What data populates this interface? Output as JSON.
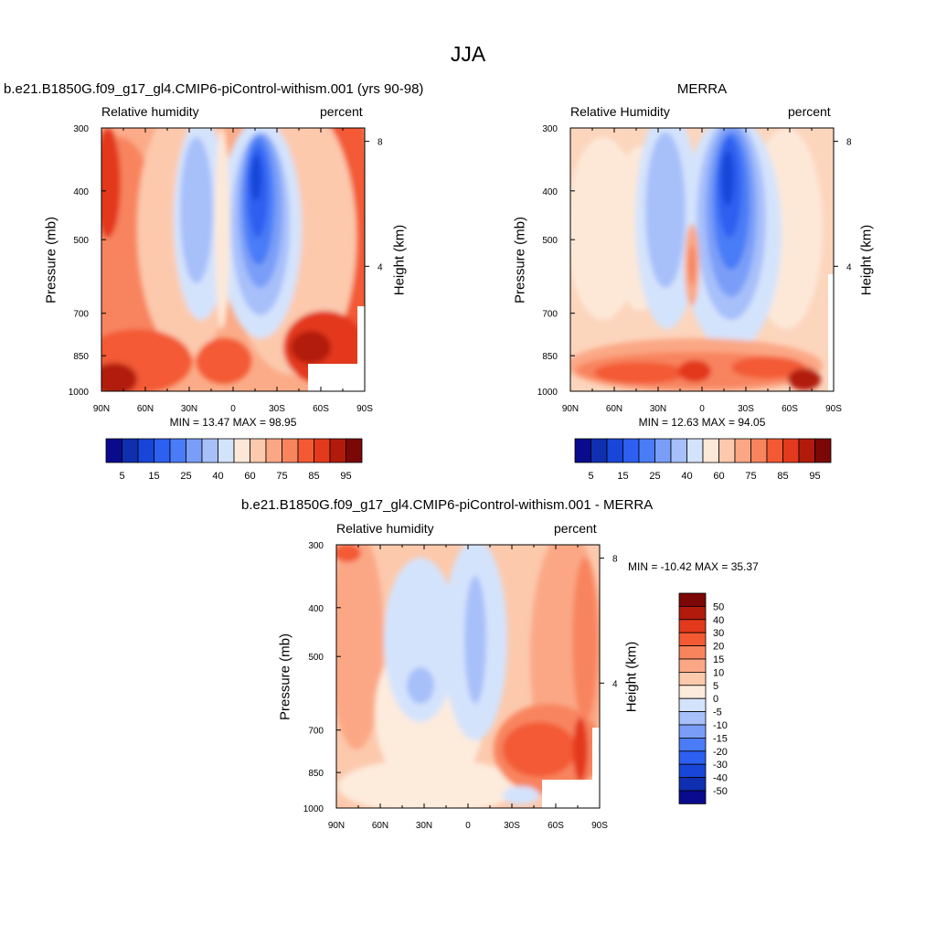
{
  "page": {
    "title": "JJA"
  },
  "palette": {
    "rh": [
      "#0a0a8c",
      "#0f2fb0",
      "#1846d8",
      "#2d5ff0",
      "#4a7cf7",
      "#7a9ef8",
      "#a7c0fa",
      "#d4e3fc",
      "#fde8d8",
      "#fcc9ad",
      "#fba785",
      "#f8845e",
      "#f35a34",
      "#e3391c",
      "#b21b0c",
      "#7c0707"
    ],
    "diff": [
      "#0a0a8c",
      "#0f2fb0",
      "#1846d8",
      "#2d5ff0",
      "#4a7cf7",
      "#7a9ef8",
      "#a7c0fa",
      "#d4e3fc",
      "#fdebdc",
      "#fcc9ad",
      "#fba785",
      "#f8845e",
      "#f35a34",
      "#e3391c",
      "#b21b0c",
      "#7c0707"
    ]
  },
  "chart_data": [
    {
      "type": "heatmap",
      "title": "b.e21.B1850G.f09_g17_gl4.CMIP6-piControl-withism.001 (yrs 90-98)",
      "left_subtitle": "Relative humidity",
      "right_subtitle": "percent",
      "ylabel": "Pressure (mb)",
      "ylabel_right": "Height (km)",
      "x_ticks": [
        "90N",
        "60N",
        "30N",
        "0",
        "30S",
        "60S",
        "90S"
      ],
      "y_ticks": [
        "300",
        "400",
        "500",
        "700",
        "850",
        "1000"
      ],
      "y_ticks_right": [
        "8",
        "4"
      ],
      "min_label": "MIN =  13.47  MAX =  98.95",
      "colorbar_labels": [
        "5",
        "15",
        "25",
        "40",
        "60",
        "75",
        "85",
        "95"
      ],
      "ylim": [
        1000,
        300
      ]
    },
    {
      "type": "heatmap",
      "title": "MERRA",
      "left_subtitle": "Relative Humidity",
      "right_subtitle": "percent",
      "ylabel": "Pressure (mb)",
      "ylabel_right": "Height (km)",
      "x_ticks": [
        "90N",
        "60N",
        "30N",
        "0",
        "30S",
        "60S",
        "90S"
      ],
      "y_ticks": [
        "300",
        "400",
        "500",
        "700",
        "850",
        "1000"
      ],
      "y_ticks_right": [
        "8",
        "4"
      ],
      "min_label": "MIN =  12.63  MAX =  94.05",
      "colorbar_labels": [
        "5",
        "15",
        "25",
        "40",
        "60",
        "75",
        "85",
        "95"
      ],
      "ylim": [
        1000,
        300
      ]
    },
    {
      "type": "heatmap",
      "title": "b.e21.B1850G.f09_g17_gl4.CMIP6-piControl-withism.001 - MERRA",
      "left_subtitle": "Relative humidity",
      "right_subtitle": "percent",
      "ylabel": "Pressure (mb)",
      "ylabel_right": "Height (km)",
      "x_ticks": [
        "90N",
        "60N",
        "30N",
        "0",
        "30S",
        "60S",
        "90S"
      ],
      "y_ticks": [
        "300",
        "400",
        "500",
        "700",
        "850",
        "1000"
      ],
      "y_ticks_right": [
        "8",
        "4"
      ],
      "min_label": "MIN = -10.42  MAX =  35.37",
      "colorbar_labels": [
        "50",
        "40",
        "30",
        "20",
        "15",
        "10",
        "5",
        "0",
        "-5",
        "-10",
        "-15",
        "-20",
        "-30",
        "-40",
        "-50"
      ],
      "ylim": [
        1000,
        300
      ]
    }
  ]
}
